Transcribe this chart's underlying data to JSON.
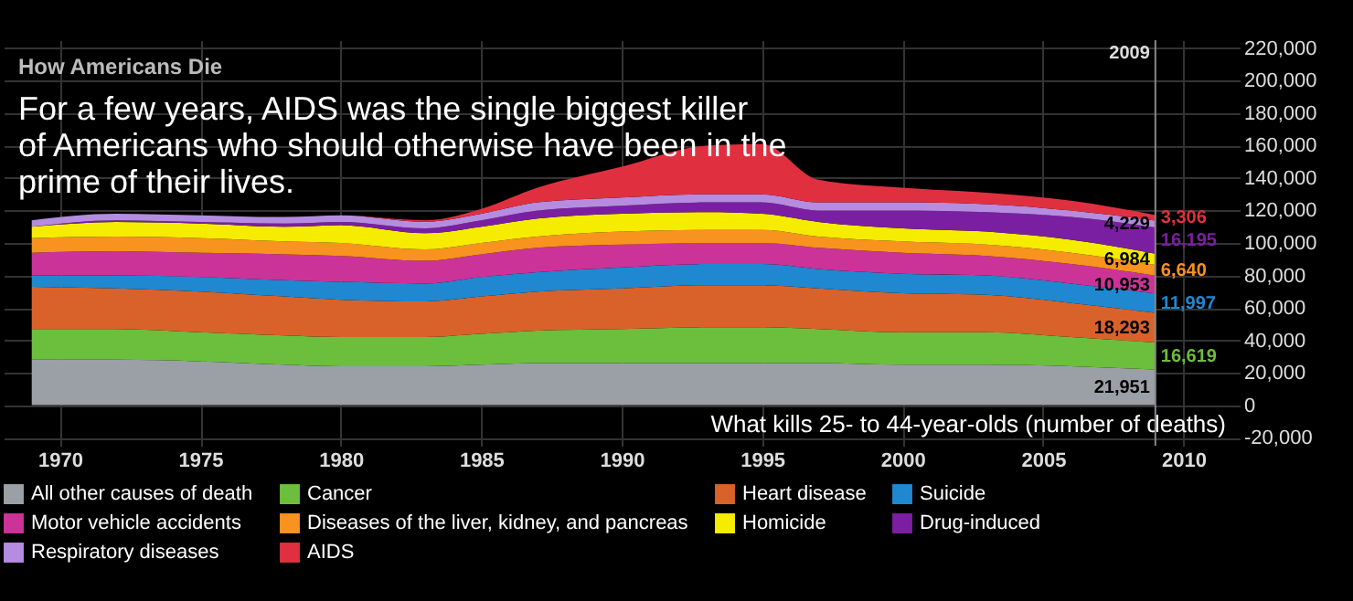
{
  "chart_data": {
    "type": "area",
    "stacked": true,
    "title": "How Americans Die",
    "subtitle": "For a few years, AIDS was the single biggest killer of Americans who should otherwise have been in the prime of their lives.",
    "ylabel": "What kills 25- to 44-year-olds (number of deaths)",
    "x": [
      1969,
      1972,
      1975,
      1978,
      1980,
      1983,
      1985,
      1987,
      1990,
      1993,
      1995,
      1997,
      2000,
      2003,
      2006,
      2009
    ],
    "series": [
      {
        "name": "All other causes of death",
        "color": "#9aa0a6",
        "values": [
          28000,
          28000,
          27000,
          25000,
          24000,
          24000,
          25000,
          26000,
          26000,
          26000,
          26000,
          26000,
          25000,
          25000,
          24000,
          21951
        ],
        "value_labels": [
          null,
          null,
          null,
          null,
          null,
          null,
          null,
          null,
          null,
          null,
          null,
          null,
          null,
          null,
          null,
          "21,951"
        ]
      },
      {
        "name": "Cancer",
        "color": "#6cbf3c",
        "values": [
          19000,
          19000,
          18000,
          18000,
          18000,
          18000,
          19000,
          20000,
          21000,
          22000,
          22000,
          21000,
          20000,
          20000,
          18000,
          16619
        ],
        "value_labels": [
          null,
          null,
          null,
          null,
          null,
          null,
          null,
          null,
          null,
          null,
          null,
          null,
          null,
          null,
          null,
          "16,619"
        ]
      },
      {
        "name": "Heart disease",
        "color": "#d9622b",
        "values": [
          26000,
          25000,
          25000,
          24000,
          23000,
          22000,
          23000,
          24000,
          25000,
          26000,
          26000,
          25000,
          24000,
          23000,
          21000,
          18293
        ],
        "value_labels": [
          null,
          null,
          null,
          null,
          null,
          null,
          null,
          null,
          null,
          null,
          null,
          null,
          null,
          null,
          null,
          "18,293"
        ]
      },
      {
        "name": "Suicide",
        "color": "#1f88d0",
        "values": [
          7000,
          8000,
          9000,
          10000,
          11000,
          11000,
          12000,
          12000,
          13000,
          13000,
          13000,
          12000,
          12000,
          12000,
          12000,
          11997
        ],
        "value_labels": [
          null,
          null,
          null,
          null,
          null,
          null,
          null,
          null,
          null,
          null,
          null,
          null,
          null,
          null,
          null,
          "11,997"
        ]
      },
      {
        "name": "Motor vehicle accidents",
        "color": "#cc3399",
        "values": [
          14000,
          15000,
          15000,
          16000,
          16000,
          14000,
          14000,
          15000,
          14000,
          13000,
          13000,
          13000,
          13000,
          12000,
          12000,
          10953
        ],
        "value_labels": [
          null,
          null,
          null,
          null,
          null,
          null,
          null,
          null,
          null,
          null,
          null,
          null,
          null,
          null,
          null,
          "10,953"
        ]
      },
      {
        "name": "Diseases of the liver, kidney, and pancreas",
        "color": "#f7931e",
        "values": [
          9000,
          9000,
          9000,
          8000,
          8000,
          7000,
          7000,
          7000,
          8000,
          8000,
          8000,
          7000,
          7000,
          7000,
          7000,
          6640
        ],
        "value_labels": [
          null,
          null,
          null,
          null,
          null,
          null,
          null,
          null,
          null,
          null,
          null,
          null,
          null,
          null,
          null,
          "6,640"
        ]
      },
      {
        "name": "Homicide",
        "color": "#f5ec00",
        "values": [
          7000,
          9000,
          9000,
          9000,
          11000,
          10000,
          10000,
          11000,
          11000,
          11000,
          10000,
          9000,
          8000,
          8000,
          8000,
          6984
        ],
        "value_labels": [
          null,
          null,
          null,
          null,
          null,
          null,
          null,
          null,
          null,
          null,
          null,
          null,
          null,
          null,
          null,
          "6,984"
        ]
      },
      {
        "name": "Drug-induced",
        "color": "#7b1fa2",
        "values": [
          0,
          1000,
          1000,
          2000,
          2000,
          3000,
          4000,
          5000,
          5000,
          6000,
          7000,
          7000,
          11000,
          12000,
          14000,
          16195
        ],
        "value_labels": [
          null,
          null,
          null,
          null,
          null,
          null,
          null,
          null,
          null,
          null,
          null,
          null,
          null,
          null,
          null,
          "16,195"
        ]
      },
      {
        "name": "Respiratory diseases",
        "color": "#b58ce0",
        "values": [
          4000,
          4000,
          4000,
          4000,
          4000,
          4000,
          4000,
          5000,
          5000,
          5000,
          5000,
          5000,
          5000,
          5000,
          4000,
          4229
        ],
        "value_labels": [
          null,
          null,
          null,
          null,
          null,
          null,
          null,
          null,
          null,
          null,
          null,
          null,
          null,
          null,
          null,
          "4,229"
        ]
      },
      {
        "name": "AIDS",
        "color": "#e03040",
        "values": [
          0,
          0,
          0,
          0,
          0,
          1000,
          3000,
          9000,
          19000,
          30000,
          31000,
          14000,
          9000,
          7000,
          6000,
          3306
        ],
        "value_labels": [
          null,
          null,
          null,
          null,
          null,
          null,
          null,
          null,
          null,
          null,
          null,
          null,
          null,
          null,
          null,
          "3,306"
        ]
      }
    ],
    "xlim": [
      1968,
      2012
    ],
    "xticks": [
      1970,
      1975,
      1980,
      1985,
      1990,
      1995,
      2000,
      2005,
      2010
    ],
    "ylim": [
      -25000,
      225000
    ],
    "yticks": [
      {
        "value": -20000,
        "label": "-20,000"
      },
      0,
      {
        "value": 20000,
        "label": "20,000"
      },
      {
        "value": 40000,
        "label": "40,000"
      },
      {
        "value": 60000,
        "label": "60,000"
      },
      {
        "value": 80000,
        "label": "80,000"
      },
      {
        "value": 100000,
        "label": "100,000"
      },
      {
        "value": 120000,
        "label": "120,000"
      },
      {
        "value": 140000,
        "label": "140,000"
      },
      {
        "value": 160000,
        "label": "160,000"
      },
      {
        "value": 180000,
        "label": "180,000"
      },
      {
        "value": 200000,
        "label": "200,000"
      },
      {
        "value": 220000,
        "label": "220,000"
      }
    ],
    "ref_lines": [
      {
        "axis": "x",
        "value": 2009,
        "label": "2009"
      }
    ],
    "grid": true,
    "legend": "bottom"
  }
}
